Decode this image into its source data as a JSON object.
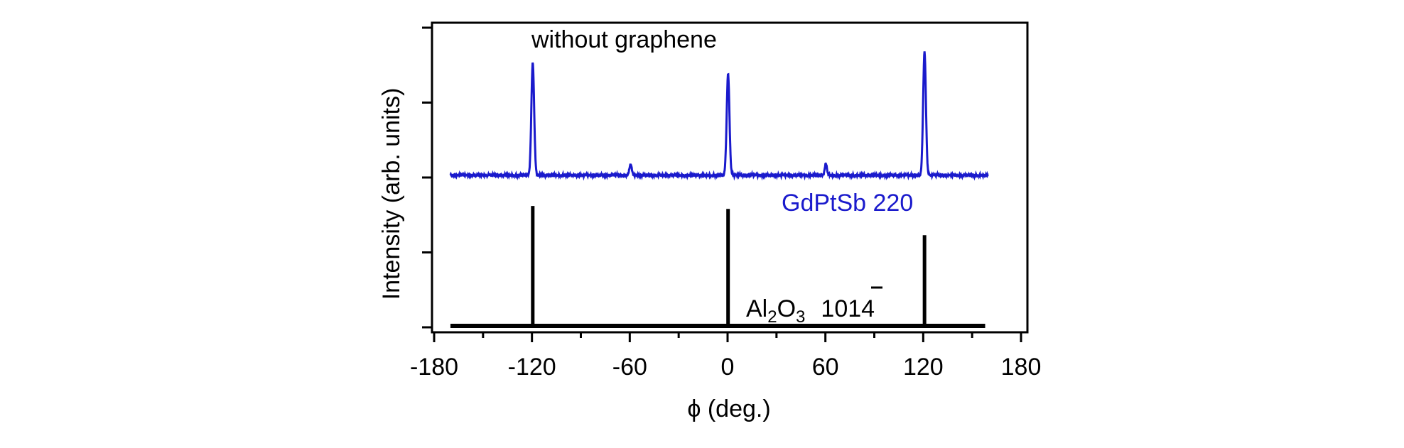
{
  "chart_data": {
    "type": "line",
    "xlabel": "ϕ (deg.)",
    "ylabel": "Intensity (arb. units)",
    "xlim": [
      -180,
      180
    ],
    "xticks": [
      -180,
      -120,
      -60,
      0,
      60,
      120,
      180
    ],
    "xtick_labels": [
      "-180",
      "-120",
      "-60",
      "0",
      "60",
      "120",
      "180"
    ],
    "ylim": [
      0,
      4
    ],
    "yticks": [
      0,
      1,
      2,
      3,
      4
    ],
    "grid": false,
    "legend": "none",
    "annotations": {
      "top": "without graphene",
      "series_label": "GdPtSb 220",
      "ref_label": {
        "base1": "Al",
        "sub1": "2",
        "base2": "O",
        "sub2": "3",
        "index_pre": "10",
        "index_bar": "1",
        "index_post": "4"
      }
    },
    "series": [
      {
        "color": "#1a1acc",
        "baseline": 2.03,
        "x_range": [
          -170,
          160
        ],
        "peaks": [
          {
            "x": -119.5,
            "y": 3.53
          },
          {
            "x": -59.5,
            "y": 2.18
          },
          {
            "x": 0.3,
            "y": 3.38
          },
          {
            "x": 60.3,
            "y": 2.18
          },
          {
            "x": 120.8,
            "y": 3.68
          }
        ]
      },
      {
        "color": "#000000",
        "type": "stick",
        "baseline": 0.0,
        "x_range": [
          -170,
          158
        ],
        "sticks": [
          {
            "x": -119.5,
            "y": 1.62
          },
          {
            "x": 0.3,
            "y": 1.58
          },
          {
            "x": 120.8,
            "y": 1.23
          }
        ]
      }
    ]
  }
}
